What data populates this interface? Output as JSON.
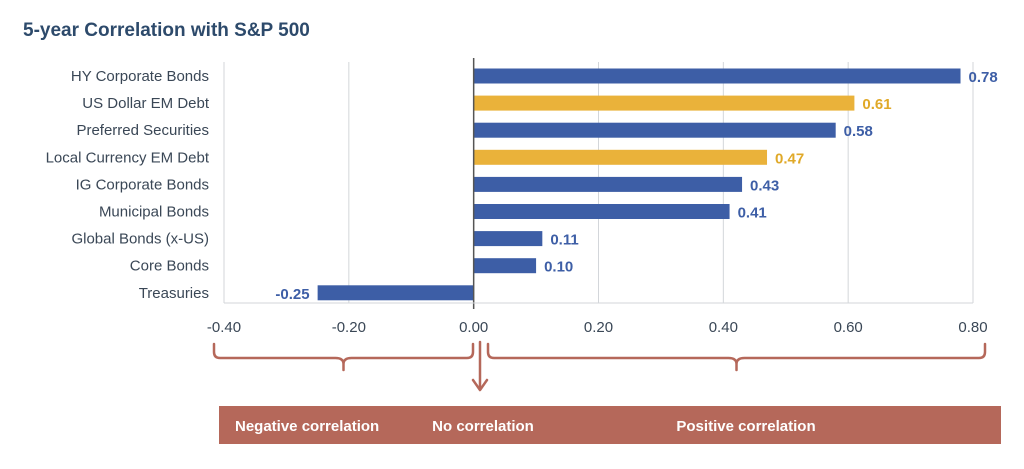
{
  "chart_data": {
    "type": "bar",
    "orientation": "horizontal",
    "title": "5-year Correlation with S&P 500",
    "categories": [
      "HY Corporate Bonds",
      "US Dollar EM Debt",
      "Preferred Securities",
      "Local Currency EM Debt",
      "IG Corporate Bonds",
      "Municipal Bonds",
      "Global Bonds (x-US)",
      "Core Bonds",
      "Treasuries"
    ],
    "values": [
      0.78,
      0.61,
      0.58,
      0.47,
      0.43,
      0.41,
      0.11,
      0.1,
      -0.25
    ],
    "value_labels": [
      "0.78",
      "0.61",
      "0.58",
      "0.47",
      "0.43",
      "0.41",
      "0.11",
      "0.10",
      "-0.25"
    ],
    "colors": [
      "#3d5ea6",
      "#eab23a",
      "#3d5ea6",
      "#eab23a",
      "#3d5ea6",
      "#3d5ea6",
      "#3d5ea6",
      "#3d5ea6",
      "#3d5ea6"
    ],
    "xlim": [
      -0.4,
      0.8
    ],
    "xticks": [
      -0.4,
      -0.2,
      0.0,
      0.2,
      0.4,
      0.6,
      0.8
    ],
    "xtick_labels": [
      "-0.40",
      "-0.20",
      "0.00",
      "0.20",
      "0.40",
      "0.60",
      "0.80"
    ],
    "grid": true,
    "annotations": {
      "negative": "Negative correlation",
      "none": "No correlation",
      "positive": "Positive correlation"
    }
  },
  "colors": {
    "bar_blue": "#3d5ea6",
    "bar_gold": "#eab23a",
    "label_blue": "#3d5ea6",
    "label_gold": "#e0a928",
    "band": "#b5685a",
    "bracket": "#b5685a",
    "grid": "#d3d6da",
    "axis": "#555555"
  }
}
